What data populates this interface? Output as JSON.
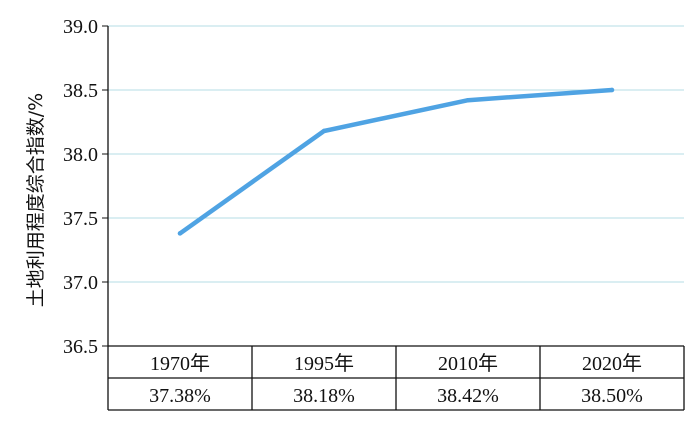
{
  "chart_data": {
    "type": "line",
    "title": "",
    "xlabel": "",
    "ylabel": "土地利用程度综合指数/%",
    "categories": [
      "1970年",
      "1995年",
      "2010年",
      "2020年"
    ],
    "series": [
      {
        "values": [
          37.38,
          38.18,
          38.42,
          38.5
        ]
      }
    ],
    "ylim": [
      36.5,
      39.0
    ],
    "yticks": [
      "36.5",
      "37.0",
      "37.5",
      "38.0",
      "38.5",
      "39.0"
    ],
    "table_values": [
      "37.38%",
      "38.18%",
      "38.42%",
      "38.50%"
    ],
    "grid": true,
    "colors": {
      "line": "#4fa3e3",
      "grid": "#b6dde6",
      "axis": "#111111"
    }
  }
}
